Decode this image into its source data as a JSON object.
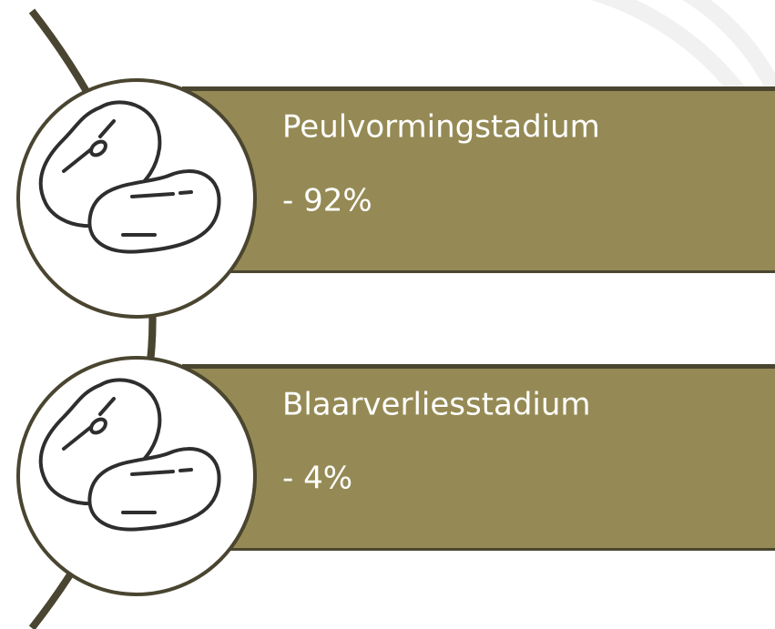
{
  "items": [
    {
      "label": "Peulvormingstadium",
      "value": "- 92%"
    },
    {
      "label": "Blaarverliesstadium",
      "value": "- 4%"
    }
  ]
}
